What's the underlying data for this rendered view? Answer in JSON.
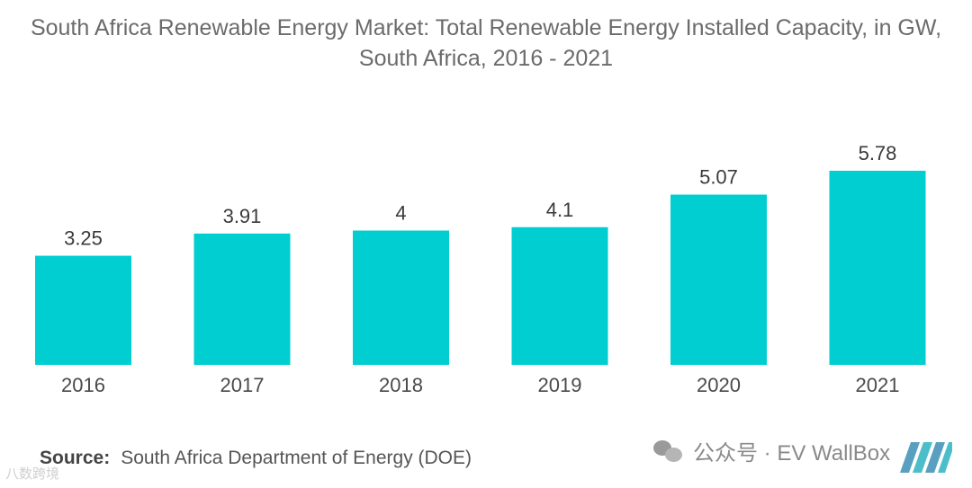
{
  "chart_data": {
    "type": "bar",
    "title_line1": "South Africa Renewable Energy Market: Total Renewable Energy Installed Capacity, in GW,",
    "title_line2": "South Africa, 2016 - 2021",
    "categories": [
      "2016",
      "2017",
      "2018",
      "2019",
      "2020",
      "2021"
    ],
    "values": [
      3.25,
      3.91,
      4,
      4.1,
      5.07,
      5.78
    ],
    "value_labels": [
      "3.25",
      "3.91",
      "4",
      "4.1",
      "5.07",
      "5.78"
    ],
    "xlabel": "",
    "ylabel": "",
    "ylim": [
      0,
      5.78
    ],
    "grid": false,
    "bar_color": "#00ced1"
  },
  "source": {
    "label": "Source:",
    "text": "South Africa Department of Energy (DOE)"
  },
  "watermark": {
    "left_text": "八数跨境",
    "right_text": "公众号 · EV WallBox"
  }
}
